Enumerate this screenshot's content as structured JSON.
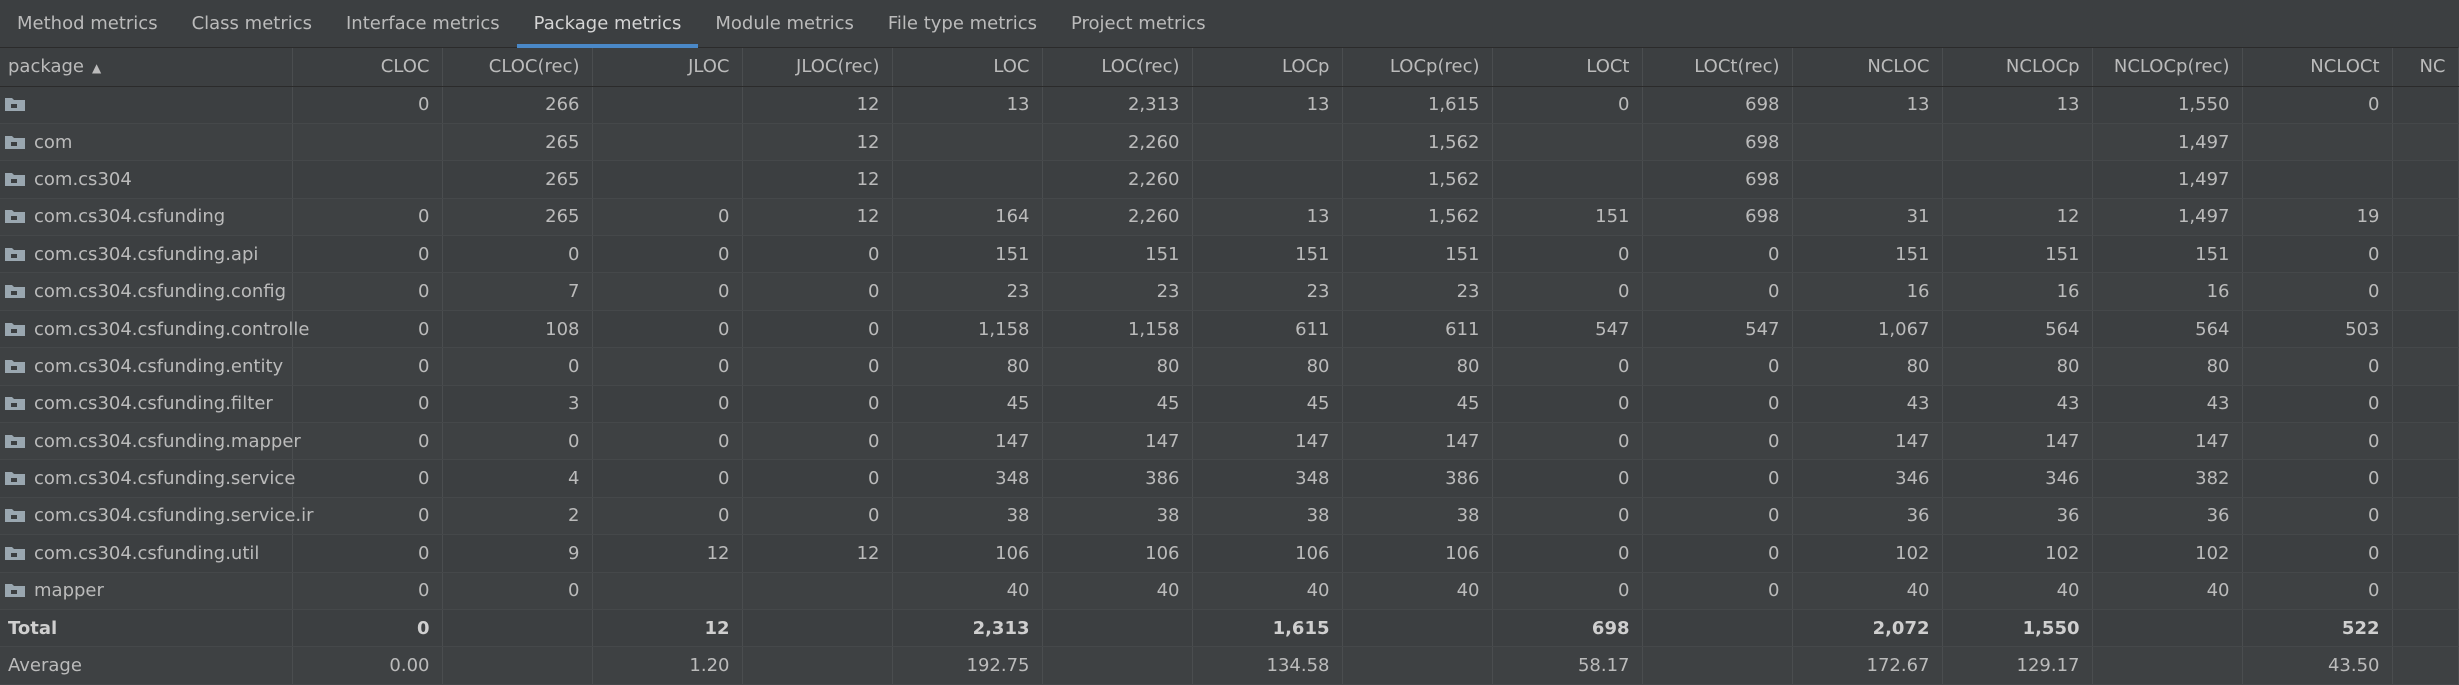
{
  "tabs": [
    "Method metrics",
    "Class metrics",
    "Interface metrics",
    "Package metrics",
    "Module metrics",
    "File type metrics",
    "Project metrics"
  ],
  "active_tab": 3,
  "columns": [
    "package",
    "CLOC",
    "CLOC(rec)",
    "JLOC",
    "JLOC(rec)",
    "LOC",
    "LOC(rec)",
    "LOCp",
    "LOCp(rec)",
    "LOCt",
    "LOCt(rec)",
    "NCLOC",
    "NCLOCp",
    "NCLOCp(rec)",
    "NCLOCt",
    "NC"
  ],
  "sort_indicator": "▲",
  "rows": [
    {
      "icon": "folder-icon",
      "cells": [
        "",
        "0",
        "266",
        "",
        "12",
        "13",
        "2,313",
        "13",
        "1,615",
        "0",
        "698",
        "13",
        "13",
        "1,550",
        "0",
        ""
      ]
    },
    {
      "icon": "folder-icon",
      "cells": [
        "com",
        "",
        "265",
        "",
        "12",
        "",
        "2,260",
        "",
        "1,562",
        "",
        "698",
        "",
        "",
        "1,497",
        "",
        ""
      ]
    },
    {
      "icon": "folder-icon",
      "cells": [
        "com.cs304",
        "",
        "265",
        "",
        "12",
        "",
        "2,260",
        "",
        "1,562",
        "",
        "698",
        "",
        "",
        "1,497",
        "",
        ""
      ]
    },
    {
      "icon": "folder-icon",
      "cells": [
        "com.cs304.csfunding",
        "0",
        "265",
        "0",
        "12",
        "164",
        "2,260",
        "13",
        "1,562",
        "151",
        "698",
        "31",
        "12",
        "1,497",
        "19",
        ""
      ]
    },
    {
      "icon": "folder-icon",
      "cells": [
        "com.cs304.csfunding.api",
        "0",
        "0",
        "0",
        "0",
        "151",
        "151",
        "151",
        "151",
        "0",
        "0",
        "151",
        "151",
        "151",
        "0",
        ""
      ]
    },
    {
      "icon": "folder-icon",
      "cells": [
        "com.cs304.csfunding.config",
        "0",
        "7",
        "0",
        "0",
        "23",
        "23",
        "23",
        "23",
        "0",
        "0",
        "16",
        "16",
        "16",
        "0",
        ""
      ]
    },
    {
      "icon": "folder-icon",
      "cells": [
        "com.cs304.csfunding.controlle",
        "0",
        "108",
        "0",
        "0",
        "1,158",
        "1,158",
        "611",
        "611",
        "547",
        "547",
        "1,067",
        "564",
        "564",
        "503",
        ""
      ]
    },
    {
      "icon": "folder-icon",
      "cells": [
        "com.cs304.csfunding.entity",
        "0",
        "0",
        "0",
        "0",
        "80",
        "80",
        "80",
        "80",
        "0",
        "0",
        "80",
        "80",
        "80",
        "0",
        ""
      ]
    },
    {
      "icon": "folder-icon",
      "cells": [
        "com.cs304.csfunding.filter",
        "0",
        "3",
        "0",
        "0",
        "45",
        "45",
        "45",
        "45",
        "0",
        "0",
        "43",
        "43",
        "43",
        "0",
        ""
      ]
    },
    {
      "icon": "folder-icon",
      "cells": [
        "com.cs304.csfunding.mapper",
        "0",
        "0",
        "0",
        "0",
        "147",
        "147",
        "147",
        "147",
        "0",
        "0",
        "147",
        "147",
        "147",
        "0",
        ""
      ]
    },
    {
      "icon": "folder-icon",
      "cells": [
        "com.cs304.csfunding.service",
        "0",
        "4",
        "0",
        "0",
        "348",
        "386",
        "348",
        "386",
        "0",
        "0",
        "346",
        "346",
        "382",
        "0",
        ""
      ]
    },
    {
      "icon": "folder-icon",
      "cells": [
        "com.cs304.csfunding.service.ir",
        "0",
        "2",
        "0",
        "0",
        "38",
        "38",
        "38",
        "38",
        "0",
        "0",
        "36",
        "36",
        "36",
        "0",
        ""
      ]
    },
    {
      "icon": "folder-icon",
      "cells": [
        "com.cs304.csfunding.util",
        "0",
        "9",
        "12",
        "12",
        "106",
        "106",
        "106",
        "106",
        "0",
        "0",
        "102",
        "102",
        "102",
        "0",
        ""
      ]
    },
    {
      "icon": "folder-icon",
      "cells": [
        "mapper",
        "0",
        "0",
        "",
        "",
        "40",
        "40",
        "40",
        "40",
        "0",
        "0",
        "40",
        "40",
        "40",
        "0",
        ""
      ]
    }
  ],
  "total": [
    "Total",
    "0",
    "",
    "12",
    "",
    "2,313",
    "",
    "1,615",
    "",
    "698",
    "",
    "2,072",
    "1,550",
    "",
    "522",
    ""
  ],
  "average": [
    "Average",
    "0.00",
    "",
    "1.20",
    "",
    "192.75",
    "",
    "134.58",
    "",
    "58.17",
    "",
    "172.67",
    "129.17",
    "",
    "43.50",
    ""
  ],
  "colors": {
    "background": "#3c3f41",
    "accent": "#4a88c7",
    "text": "#bbbbbb",
    "folder": "#9aa7b0"
  }
}
